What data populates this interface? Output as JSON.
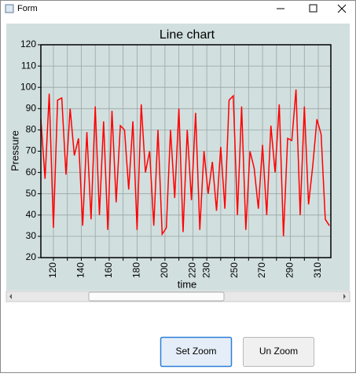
{
  "window": {
    "title": "Form"
  },
  "chart_data": {
    "type": "line",
    "title": "Line chart",
    "x_label": "time",
    "y_label": "Pressure",
    "x": [
      111,
      114,
      117,
      120,
      123,
      126,
      129,
      132,
      135,
      138,
      141,
      144,
      147,
      150,
      153,
      156,
      159,
      162,
      165,
      168,
      171,
      174,
      177,
      180,
      183,
      186,
      189,
      192,
      195,
      198,
      201,
      204,
      207,
      210,
      213,
      216,
      219,
      222,
      225,
      228,
      231,
      234,
      237,
      240,
      243,
      246,
      249,
      252,
      255,
      258,
      261,
      264,
      267,
      270,
      273,
      276,
      279,
      282,
      285,
      288,
      291,
      294,
      297,
      300,
      303,
      306,
      309,
      312,
      315,
      318
    ],
    "values": [
      85,
      57,
      97,
      34,
      94,
      95,
      59,
      90,
      68,
      76,
      35,
      79,
      38,
      91,
      40,
      84,
      33,
      89,
      46,
      82,
      80,
      52,
      84,
      33,
      92,
      60,
      70,
      35,
      80,
      31,
      34,
      80,
      48,
      90,
      32,
      80,
      47,
      88,
      33,
      70,
      50,
      65,
      42,
      72,
      43,
      94,
      96,
      40,
      91,
      33,
      70,
      62,
      43,
      73,
      40,
      82,
      60,
      92,
      30,
      76,
      75,
      99,
      40,
      91,
      45,
      63,
      85,
      78,
      38,
      35
    ],
    "color": "#ff0000",
    "xlim": [
      111,
      319
    ],
    "xticks": [
      120,
      130,
      140,
      150,
      160,
      170,
      180,
      190,
      200,
      210,
      220,
      230,
      240,
      250,
      260,
      270,
      280,
      290,
      300,
      310
    ],
    "x_labeled_ticks": [
      120,
      140,
      160,
      180,
      200,
      220,
      230,
      250,
      270,
      290,
      310
    ],
    "ylim": [
      20,
      120
    ],
    "yticks": [
      20,
      30,
      40,
      50,
      60,
      70,
      80,
      90,
      100,
      110,
      120
    ],
    "grid": true
  },
  "buttons": [
    "Set Zoom",
    "Un Zoom"
  ]
}
